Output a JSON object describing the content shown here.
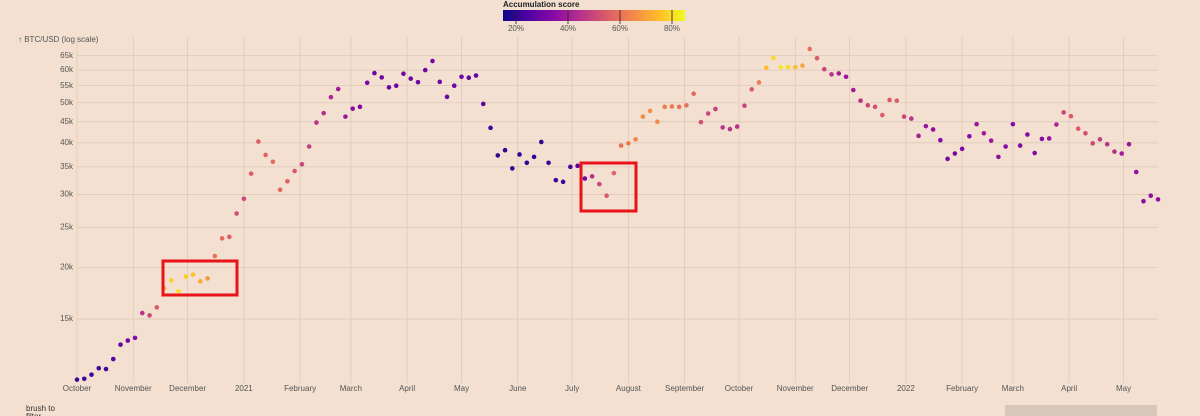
{
  "chart_data": {
    "type": "scatter",
    "ylabel": "↑ BTC/USD (log scale)",
    "log_y": true,
    "grid": true,
    "brush_label": "brush to filter",
    "xlim": [
      "2020-10-01",
      "2022-05-20"
    ],
    "ylim": [
      10500,
      69000
    ],
    "yticks": [
      {
        "value": 15000,
        "label": "15k"
      },
      {
        "value": 20000,
        "label": "20k"
      },
      {
        "value": 25000,
        "label": "25k"
      },
      {
        "value": 30000,
        "label": "30k"
      },
      {
        "value": 35000,
        "label": "35k"
      },
      {
        "value": 40000,
        "label": "40k"
      },
      {
        "value": 45000,
        "label": "45k"
      },
      {
        "value": 50000,
        "label": "50k"
      },
      {
        "value": 55000,
        "label": "55k"
      },
      {
        "value": 60000,
        "label": "60k"
      },
      {
        "value": 65000,
        "label": "65k"
      }
    ],
    "xticks": [
      {
        "value": "2020-10-01",
        "label": "October"
      },
      {
        "value": "2020-11-01",
        "label": "November"
      },
      {
        "value": "2020-12-01",
        "label": "December"
      },
      {
        "value": "2021-01-01",
        "label": "2021"
      },
      {
        "value": "2021-02-01",
        "label": "February"
      },
      {
        "value": "2021-03-01",
        "label": "March"
      },
      {
        "value": "2021-04-01",
        "label": "April"
      },
      {
        "value": "2021-05-01",
        "label": "May"
      },
      {
        "value": "2021-06-01",
        "label": "June"
      },
      {
        "value": "2021-07-01",
        "label": "July"
      },
      {
        "value": "2021-08-01",
        "label": "August"
      },
      {
        "value": "2021-09-01",
        "label": "September"
      },
      {
        "value": "2021-10-01",
        "label": "October"
      },
      {
        "value": "2021-11-01",
        "label": "November"
      },
      {
        "value": "2021-12-01",
        "label": "December"
      },
      {
        "value": "2022-01-01",
        "label": "2022"
      },
      {
        "value": "2022-02-01",
        "label": "February"
      },
      {
        "value": "2022-03-01",
        "label": "March"
      },
      {
        "value": "2022-04-01",
        "label": "April"
      },
      {
        "value": "2022-05-01",
        "label": "May"
      }
    ],
    "colorbar": {
      "title": "Accumulation score",
      "lim": [
        15,
        85
      ],
      "ticks": [
        {
          "value": 20,
          "label": "20%"
        },
        {
          "value": 40,
          "label": "40%"
        },
        {
          "value": 60,
          "label": "60%"
        },
        {
          "value": 80,
          "label": "80%"
        }
      ],
      "colors": [
        "#0d0887",
        "#5302a3",
        "#8b0aa5",
        "#b83289",
        "#db5c68",
        "#f48849",
        "#febd2a",
        "#f0f921"
      ]
    },
    "x": [
      "2020-10-01",
      "2020-10-05",
      "2020-10-09",
      "2020-10-13",
      "2020-10-17",
      "2020-10-21",
      "2020-10-25",
      "2020-10-29",
      "2020-11-02",
      "2020-11-06",
      "2020-11-10",
      "2020-11-14",
      "2020-11-18",
      "2020-11-22",
      "2020-11-26",
      "2020-11-30",
      "2020-12-04",
      "2020-12-08",
      "2020-12-12",
      "2020-12-16",
      "2020-12-20",
      "2020-12-24",
      "2020-12-28",
      "2021-01-01",
      "2021-01-05",
      "2021-01-09",
      "2021-01-13",
      "2021-01-17",
      "2021-01-21",
      "2021-01-25",
      "2021-01-29",
      "2021-02-02",
      "2021-02-06",
      "2021-02-10",
      "2021-02-14",
      "2021-02-18",
      "2021-02-22",
      "2021-02-26",
      "2021-03-02",
      "2021-03-06",
      "2021-03-10",
      "2021-03-14",
      "2021-03-18",
      "2021-03-22",
      "2021-03-26",
      "2021-03-30",
      "2021-04-03",
      "2021-04-07",
      "2021-04-11",
      "2021-04-15",
      "2021-04-19",
      "2021-04-23",
      "2021-04-27",
      "2021-05-01",
      "2021-05-05",
      "2021-05-09",
      "2021-05-13",
      "2021-05-17",
      "2021-05-21",
      "2021-05-25",
      "2021-05-29",
      "2021-06-02",
      "2021-06-06",
      "2021-06-10",
      "2021-06-14",
      "2021-06-18",
      "2021-06-22",
      "2021-06-26",
      "2021-06-30",
      "2021-07-04",
      "2021-07-08",
      "2021-07-12",
      "2021-07-16",
      "2021-07-20",
      "2021-07-24",
      "2021-07-28",
      "2021-08-01",
      "2021-08-05",
      "2021-08-09",
      "2021-08-13",
      "2021-08-17",
      "2021-08-21",
      "2021-08-25",
      "2021-08-29",
      "2021-09-02",
      "2021-09-06",
      "2021-09-10",
      "2021-09-14",
      "2021-09-18",
      "2021-09-22",
      "2021-09-26",
      "2021-09-30",
      "2021-10-04",
      "2021-10-08",
      "2021-10-12",
      "2021-10-16",
      "2021-10-20",
      "2021-10-24",
      "2021-10-28",
      "2021-11-01",
      "2021-11-05",
      "2021-11-09",
      "2021-11-13",
      "2021-11-17",
      "2021-11-21",
      "2021-11-25",
      "2021-11-29",
      "2021-12-03",
      "2021-12-07",
      "2021-12-11",
      "2021-12-15",
      "2021-12-19",
      "2021-12-23",
      "2021-12-27",
      "2021-12-31",
      "2022-01-04",
      "2022-01-08",
      "2022-01-12",
      "2022-01-16",
      "2022-01-20",
      "2022-01-24",
      "2022-01-28",
      "2022-02-01",
      "2022-02-05",
      "2022-02-09",
      "2022-02-13",
      "2022-02-17",
      "2022-02-21",
      "2022-02-25",
      "2022-03-01",
      "2022-03-05",
      "2022-03-09",
      "2022-03-13",
      "2022-03-17",
      "2022-03-21",
      "2022-03-25",
      "2022-03-29",
      "2022-04-02",
      "2022-04-06",
      "2022-04-10",
      "2022-04-14",
      "2022-04-18",
      "2022-04-22",
      "2022-04-26",
      "2022-04-30",
      "2022-05-04",
      "2022-05-08",
      "2022-05-12",
      "2022-05-16",
      "2022-05-20"
    ],
    "values": [
      10700,
      10750,
      11000,
      11400,
      11350,
      12000,
      13000,
      13300,
      13500,
      15500,
      15300,
      16000,
      17800,
      18600,
      17500,
      19000,
      19200,
      18500,
      18800,
      21300,
      23500,
      23700,
      27000,
      29300,
      33700,
      40300,
      37400,
      36000,
      30800,
      32300,
      34200,
      35500,
      39200,
      44800,
      47200,
      51600,
      54000,
      46300,
      48400,
      48900,
      55900,
      59000,
      57600,
      54500,
      55000,
      58800,
      57200,
      56100,
      60000,
      63100,
      56200,
      51700,
      55000,
      57800,
      57500,
      58200,
      49700,
      43500,
      37300,
      38400,
      34700,
      37500,
      35800,
      37000,
      40200,
      35800,
      32500,
      32200,
      35000,
      35200,
      32800,
      33200,
      31800,
      29800,
      33800,
      39400,
      39900,
      40800,
      46300,
      47800,
      45000,
      48900,
      49000,
      48900,
      49300,
      52600,
      44900,
      47100,
      48300,
      43600,
      43200,
      43800,
      49200,
      53900,
      56000,
      60800,
      64200,
      61000,
      61000,
      61000,
      61500,
      67500,
      64100,
      60300,
      58600,
      58900,
      57800,
      53700,
      50600,
      49300,
      48900,
      46700,
      50800,
      50600,
      46300,
      45800,
      41600,
      43900,
      43100,
      40600,
      36600,
      37700,
      38700,
      41500,
      44400,
      42200,
      40500,
      37000,
      39200,
      44400,
      39400,
      41900,
      37800,
      40900,
      41000,
      44300,
      47400,
      46400,
      43300,
      42200,
      39900,
      40800,
      39700,
      38100,
      37700,
      39700,
      34000,
      28900,
      29800,
      29200
    ],
    "scores": [
      22,
      22,
      22,
      23,
      23,
      25,
      28,
      30,
      35,
      45,
      50,
      55,
      72,
      78,
      80,
      78,
      76,
      72,
      68,
      60,
      58,
      55,
      52,
      50,
      55,
      56,
      57,
      58,
      57,
      56,
      54,
      50,
      48,
      45,
      44,
      42,
      40,
      38,
      35,
      33,
      32,
      30,
      30,
      30,
      30,
      30,
      30,
      30,
      30,
      32,
      30,
      30,
      30,
      30,
      28,
      28,
      26,
      22,
      20,
      20,
      20,
      20,
      20,
      20,
      21,
      22,
      22,
      22,
      24,
      26,
      30,
      45,
      50,
      55,
      57,
      60,
      62,
      64,
      65,
      66,
      65,
      62,
      62,
      60,
      60,
      58,
      52,
      50,
      48,
      46,
      45,
      45,
      50,
      55,
      62,
      75,
      80,
      82,
      80,
      75,
      70,
      60,
      55,
      50,
      45,
      40,
      38,
      40,
      45,
      50,
      52,
      55,
      55,
      55,
      50,
      45,
      40,
      38,
      36,
      34,
      32,
      32,
      33,
      35,
      38,
      40,
      38,
      36,
      35,
      35,
      34,
      35,
      34,
      35,
      38,
      42,
      50,
      55,
      54,
      52,
      50,
      48,
      46,
      44,
      40,
      38,
      36,
      35,
      36,
      36
    ]
  }
}
